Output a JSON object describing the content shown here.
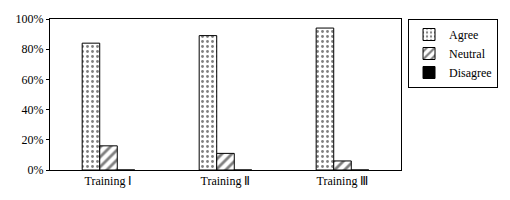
{
  "chart_data": {
    "type": "bar",
    "categories": [
      "Training Ⅰ",
      "Training Ⅱ",
      "Training Ⅲ"
    ],
    "series": [
      {
        "name": "Agree",
        "color": "#000000",
        "marker": "dots",
        "values": [
          84,
          89,
          94
        ]
      },
      {
        "name": "Neutral",
        "color": "#000000",
        "marker": "hatch",
        "values": [
          16,
          11,
          6
        ]
      },
      {
        "name": "Disagree",
        "color": "#000000",
        "marker": "solid",
        "values": [
          0,
          0,
          0
        ]
      }
    ],
    "ylim": [
      0,
      100
    ],
    "yticks": [
      {
        "value": 0,
        "label": "0%"
      },
      {
        "value": 20,
        "label": "20%"
      },
      {
        "value": 40,
        "label": "40%"
      },
      {
        "value": 60,
        "label": "60%"
      },
      {
        "value": 80,
        "label": "80%"
      },
      {
        "value": 100,
        "label": "100%"
      }
    ],
    "grid": false,
    "legend": "right"
  }
}
